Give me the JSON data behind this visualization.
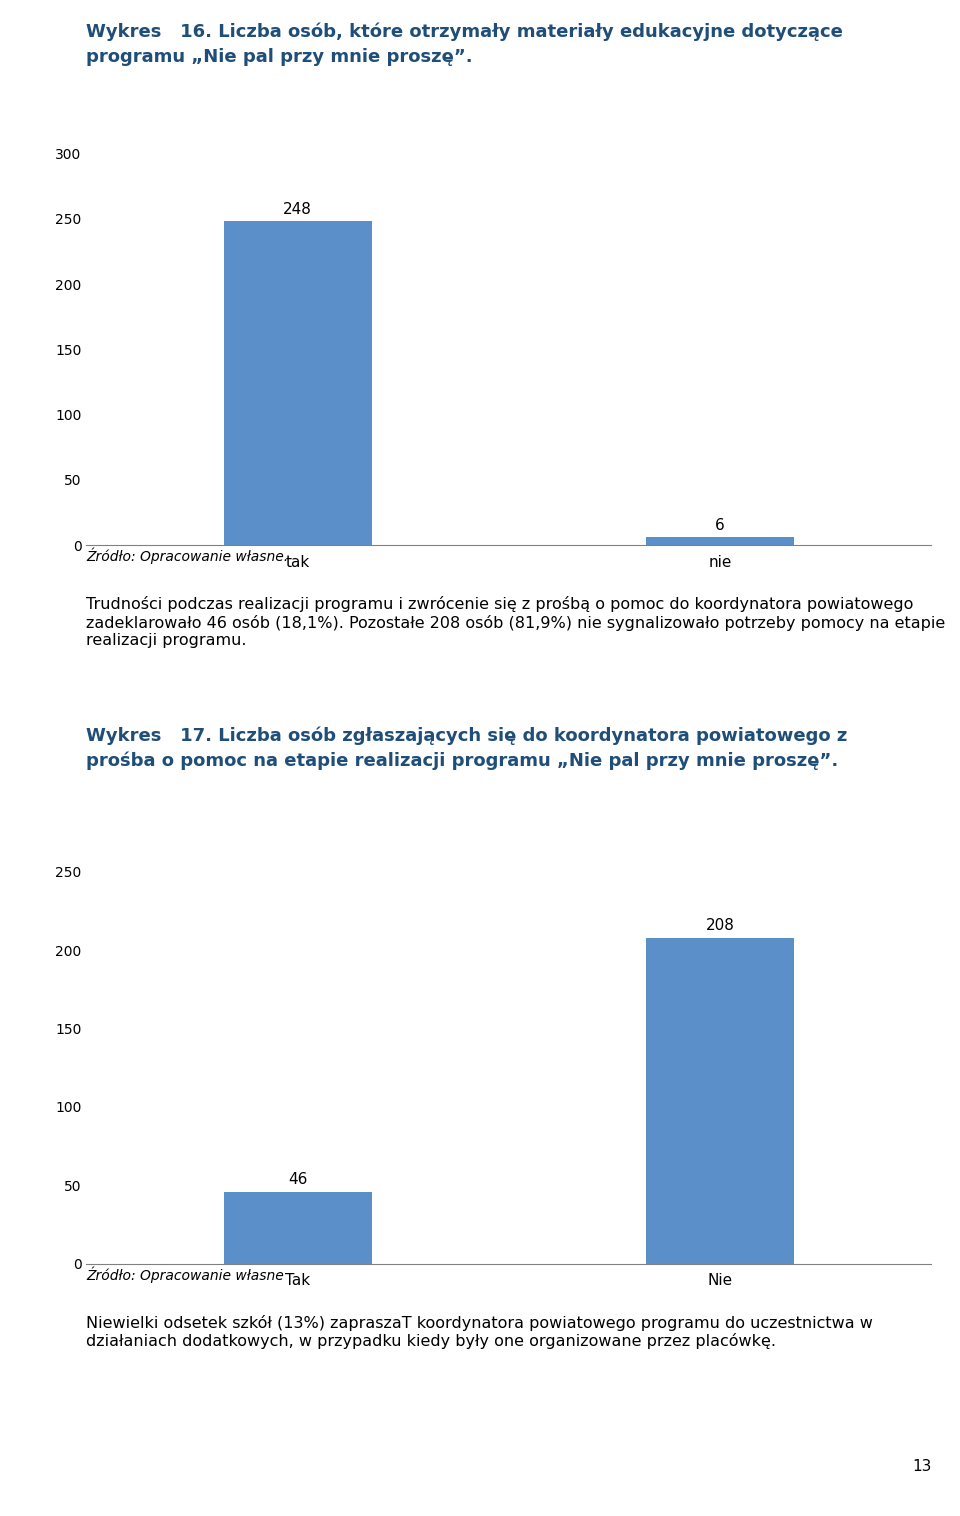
{
  "chart1": {
    "title_line1": "Wykres   16. Liczba osób, które otrzymały materiały edukacyjne dotyczące",
    "title_line2": "programu „Nie pal przy mnie proszę”.",
    "categories": [
      "tak",
      "nie"
    ],
    "values": [
      248,
      6
    ],
    "bar_color": "#5b8fc9",
    "ylim": [
      0,
      300
    ],
    "yticks": [
      0,
      50,
      100,
      150,
      200,
      250,
      300
    ],
    "source": "Źródło: Opracowanie własne."
  },
  "chart2": {
    "title_line1": "Wykres   17. Liczba osób zgłaszających się do koordynatora powiatowego z",
    "title_line2": "prośba o pomoc na etapie realizacji programu „Nie pal przy mnie proszę”.",
    "categories": [
      "Tak",
      "Nie"
    ],
    "values": [
      46,
      208
    ],
    "bar_color": "#5b8fc9",
    "ylim": [
      0,
      250
    ],
    "yticks": [
      0,
      50,
      100,
      150,
      200,
      250
    ],
    "source": "Źródło: Opracowanie własne"
  },
  "paragraph1": "Trudności podczas realizacji programu i zwrócenie się z prośbą o pomoc do koordynatora powiatowego zadeklarowało 46 osób (18,1%). Pozostałe 208 osób (81,9%) nie sygnalizowało potrzeby pomocy na etapie realizacji programu.",
  "paragraph2": "Niewielki odsetek szkół (13%) zapraszaT koordynatora powiatowego programu do uczestnictwa w działaniach dodatkowych, w przypadku kiedy były one organizowane przez placówkę.",
  "page_number": "13",
  "title_color": "#1f4e79",
  "bar_color": "#5b8fc9",
  "text_color": "#000000",
  "bg_color": "#ffffff"
}
